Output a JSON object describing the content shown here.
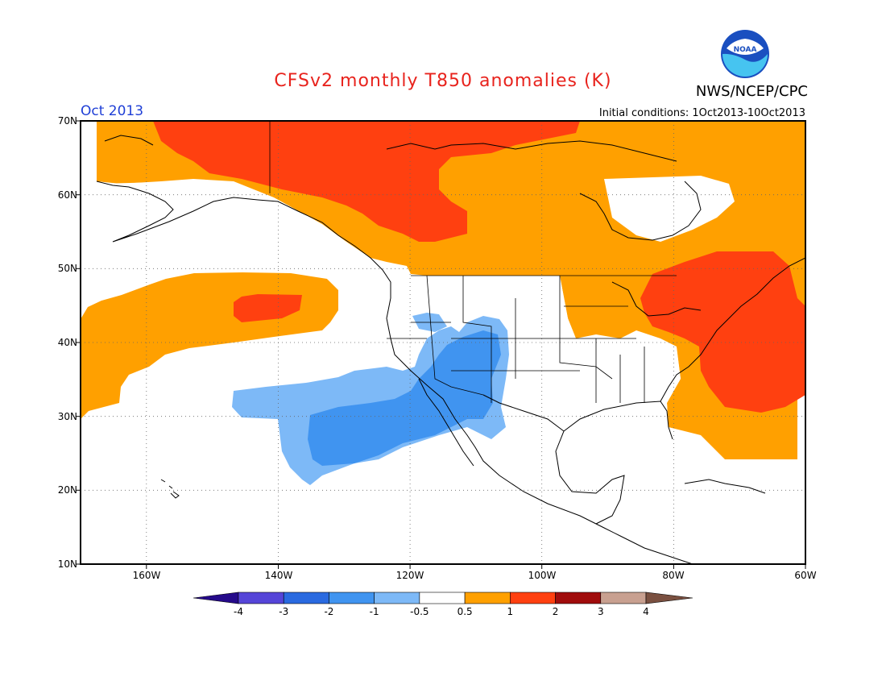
{
  "title": "CFSv2 monthly T850 anomalies (K)",
  "period": "Oct 2013",
  "initial_conditions": "Initial conditions: 1Oct2013-10Oct2013",
  "organization": "NWS/NCEP/CPC",
  "logo_text": "NOAA",
  "lat_labels": [
    "70N",
    "60N",
    "50N",
    "40N",
    "30N",
    "20N",
    "10N"
  ],
  "lon_labels": [
    "160W",
    "140W",
    "120W",
    "100W",
    "80W",
    "60W"
  ],
  "colorbar": {
    "labels": [
      "-4",
      "-3",
      "-2",
      "-1",
      "-0.5",
      "0.5",
      "1",
      "2",
      "3",
      "4"
    ],
    "colors": [
      "#250a8a",
      "#5545d8",
      "#2a6ae0",
      "#4094f0",
      "#7db9f7",
      "#ffffff",
      "#ffa000",
      "#ff4010",
      "#a00c0c",
      "#c8a090",
      "#7a5040"
    ]
  },
  "anomaly_colors": {
    "orange": "#ffa000",
    "red": "#ff4010",
    "light_blue": "#7db9f7",
    "mid_blue": "#4094f0"
  }
}
